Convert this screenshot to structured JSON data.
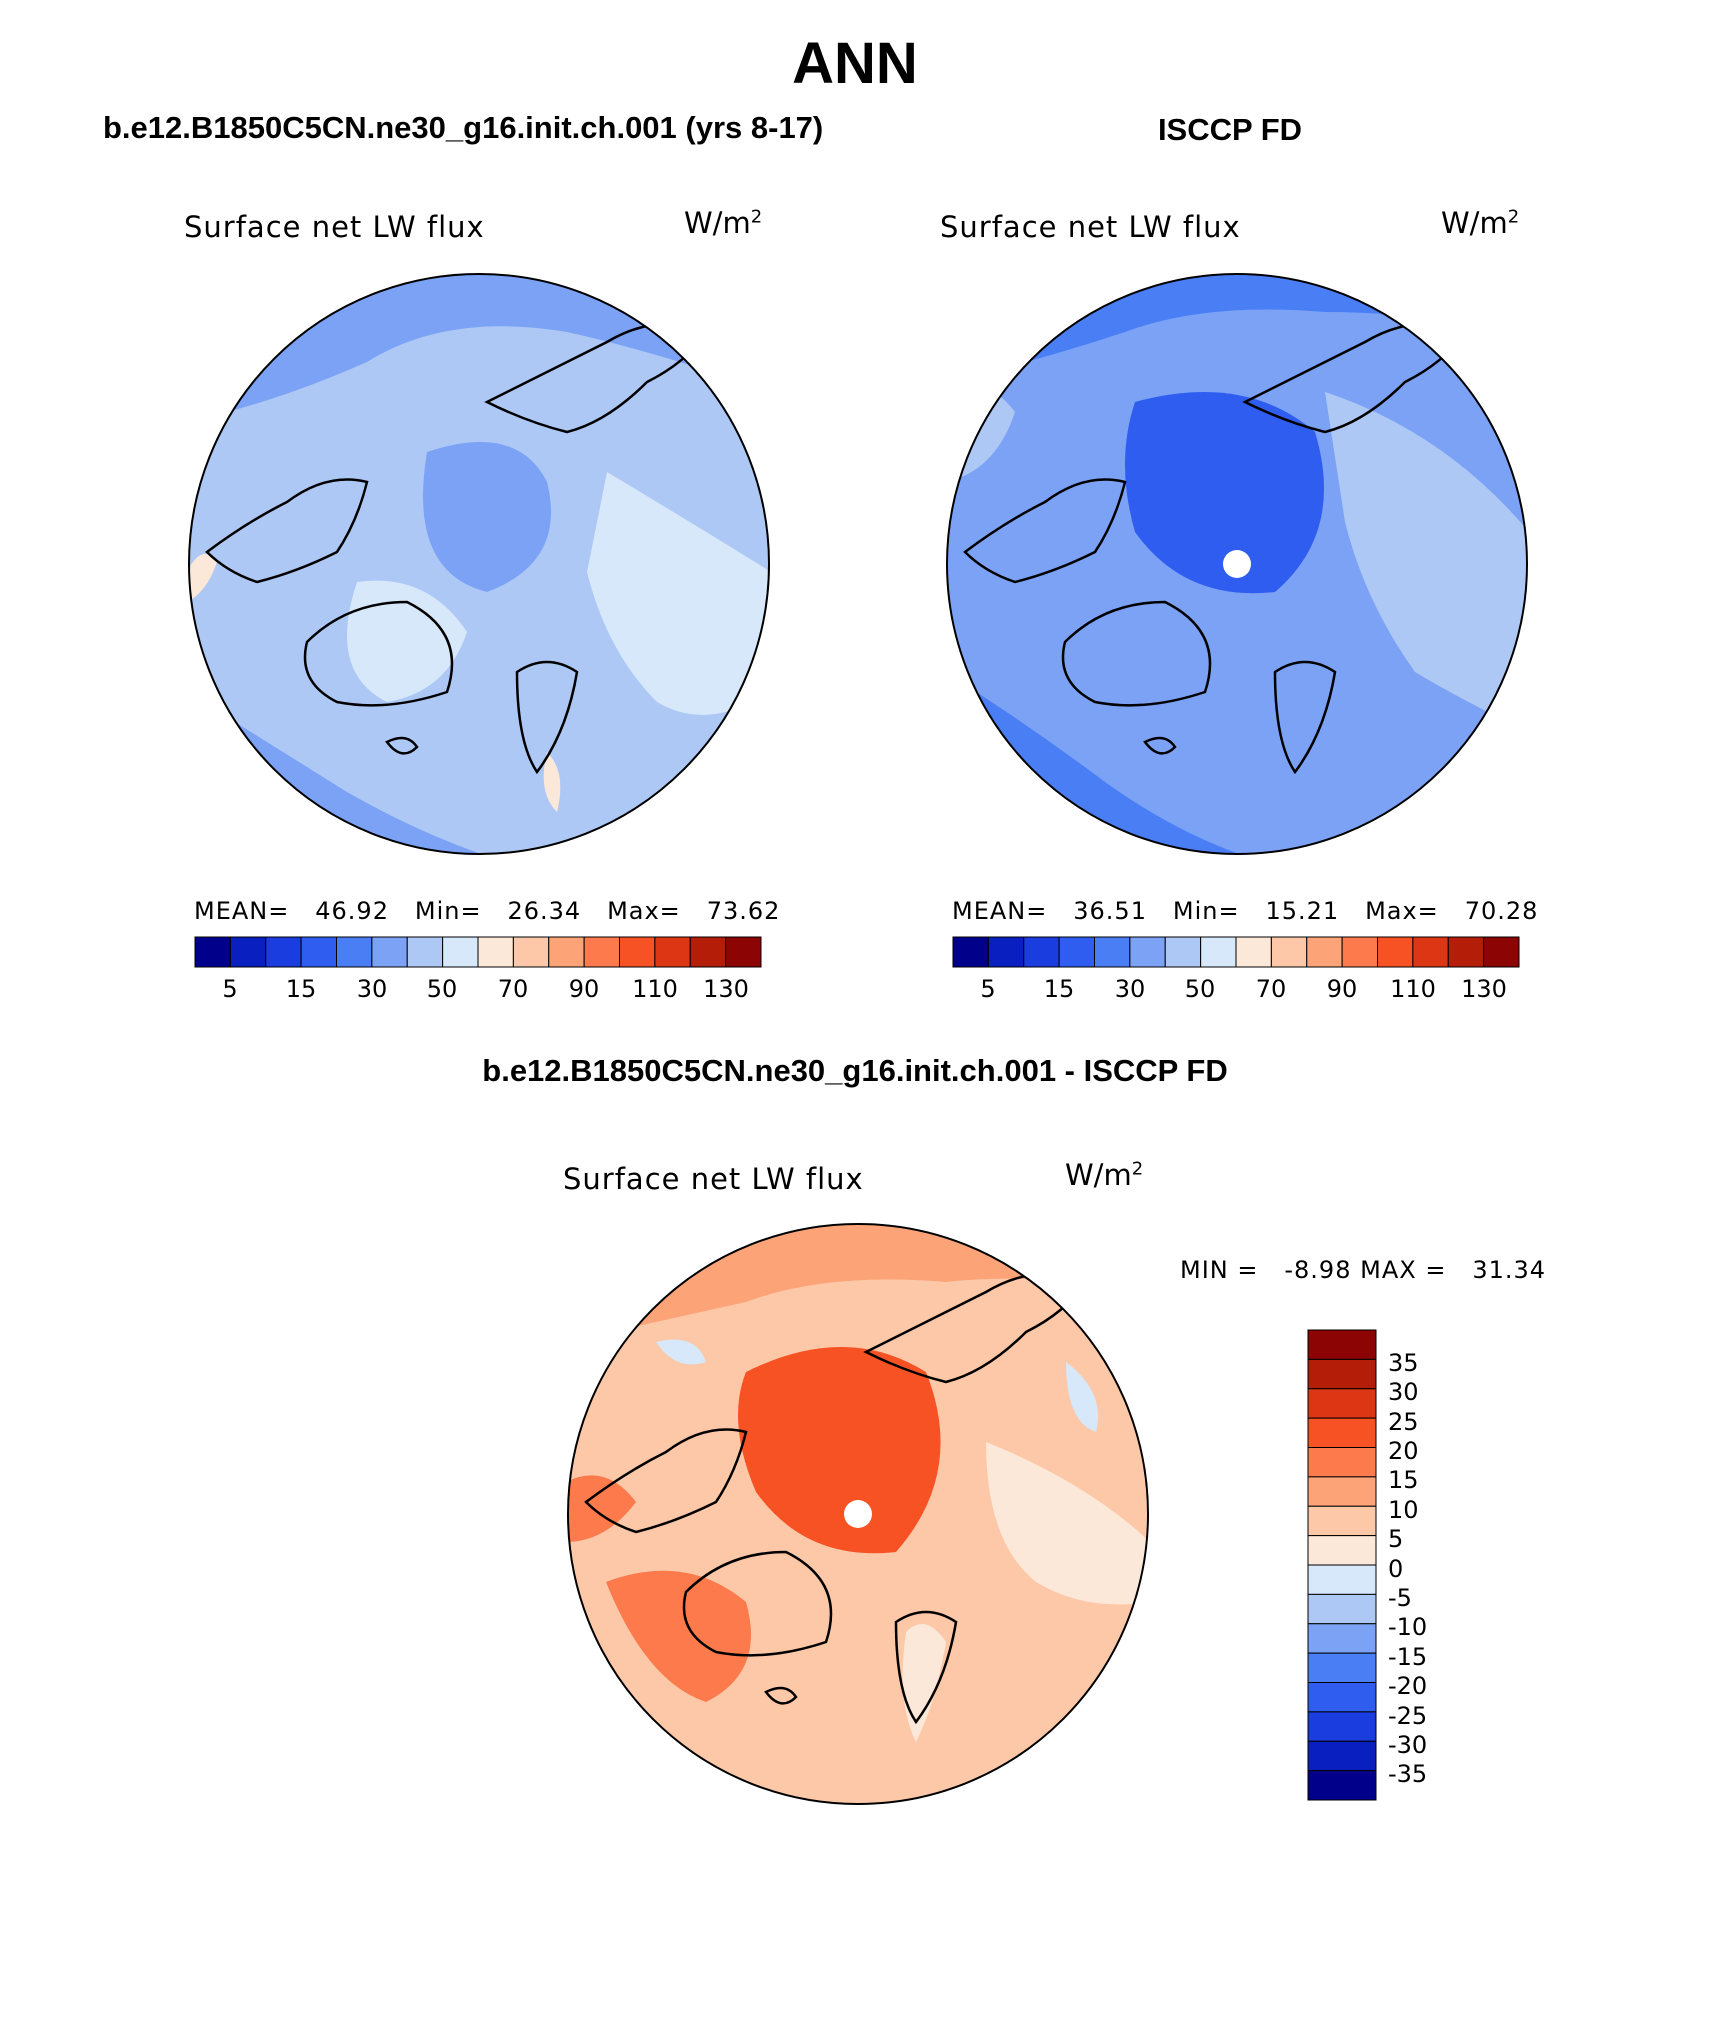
{
  "figure": {
    "title": "ANN",
    "left_header": "b.e12.B1850C5CN.ne30_g16.init.ch.001 (yrs 8-17)",
    "right_header": "ISCCP FD",
    "diff_header": "b.e12.B1850C5CN.ne30_g16.init.ch.001 - ISCCP FD"
  },
  "colors": {
    "absolute_scale": [
      "#00008b",
      "#0a1fbf",
      "#1a3de0",
      "#2e5df0",
      "#4a7ef5",
      "#7ba2f5",
      "#aec8f5",
      "#d6e8fa",
      "#fce8d8",
      "#fcc8a8",
      "#fca478",
      "#fc7a4c",
      "#f65224",
      "#dc3614",
      "#b41e08",
      "#8c0404"
    ],
    "diff_scale": [
      "#00008b",
      "#0a1fbf",
      "#1a3de0",
      "#2e5df0",
      "#4a7ef5",
      "#7ba2f5",
      "#aec8f5",
      "#d6e8fa",
      "#fce8d8",
      "#fcc8a8",
      "#fca478",
      "#fc7a4c",
      "#f65224",
      "#dc3614",
      "#b41e08",
      "#8c0404"
    ],
    "coastline": "#000000"
  },
  "panels": [
    {
      "id": "model",
      "title": "Surface net LW flux",
      "units_base": "W/m",
      "units_exp": "2",
      "stats": {
        "mean_label": "MEAN=",
        "mean": "46.92",
        "min_label": "Min=",
        "min": "26.34",
        "max_label": "Max=",
        "max": "73.62"
      },
      "colorbar_labels": [
        "5",
        "15",
        "30",
        "50",
        "70",
        "90",
        "110",
        "130"
      ]
    },
    {
      "id": "obs",
      "title": "Surface net LW flux",
      "units_base": "W/m",
      "units_exp": "2",
      "stats": {
        "mean_label": "MEAN=",
        "mean": "36.51",
        "min_label": "Min=",
        "min": "15.21",
        "max_label": "Max=",
        "max": "70.28"
      },
      "colorbar_labels": [
        "5",
        "15",
        "30",
        "50",
        "70",
        "90",
        "110",
        "130"
      ]
    },
    {
      "id": "diff",
      "title": "Surface net LW flux",
      "units_base": "W/m",
      "units_exp": "2",
      "stats": {
        "min_label": "MIN =",
        "min": "-8.98",
        "max_label": "MAX =",
        "max": "31.34"
      },
      "colorbar_labels": [
        "35",
        "30",
        "25",
        "20",
        "15",
        "10",
        "5",
        "0",
        "-5",
        "-10",
        "-15",
        "-20",
        "-25",
        "-30",
        "-35"
      ]
    }
  ]
}
